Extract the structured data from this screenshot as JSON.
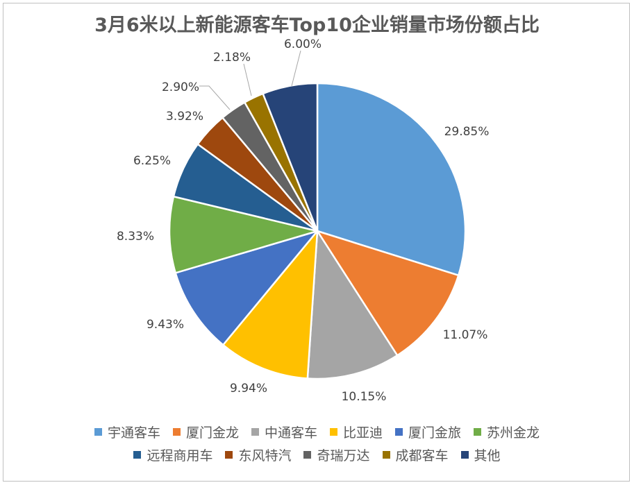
{
  "chart_data": {
    "type": "pie",
    "title": "3月6米以上新能源客车Top10企业销量市场份额占比",
    "unit": "%",
    "slices": [
      {
        "name": "宇通客车",
        "value": 29.85,
        "label": "29.85%",
        "color": "#5B9BD5"
      },
      {
        "name": "厦门金龙",
        "value": 11.07,
        "label": "11.07%",
        "color": "#ED7D31"
      },
      {
        "name": "中通客车",
        "value": 10.15,
        "label": "10.15%",
        "color": "#A5A5A5"
      },
      {
        "name": "比亚迪",
        "value": 9.94,
        "label": "9.94%",
        "color": "#FFC000"
      },
      {
        "name": "厦门金旅",
        "value": 9.43,
        "label": "9.43%",
        "color": "#4472C4"
      },
      {
        "name": "苏州金龙",
        "value": 8.33,
        "label": "8.33%",
        "color": "#70AD47"
      },
      {
        "name": "远程商用车",
        "value": 6.25,
        "label": "6.25%",
        "color": "#255E91"
      },
      {
        "name": "东风特汽",
        "value": 3.92,
        "label": "3.92%",
        "color": "#9E480E"
      },
      {
        "name": "奇瑞万达",
        "value": 2.9,
        "label": "2.90%",
        "color": "#636363"
      },
      {
        "name": "成都客车",
        "value": 2.18,
        "label": "2.18%",
        "color": "#997300"
      },
      {
        "name": "其他",
        "value": 6.0,
        "label": "6.00%",
        "color": "#264478"
      }
    ],
    "legend_position": "bottom"
  }
}
